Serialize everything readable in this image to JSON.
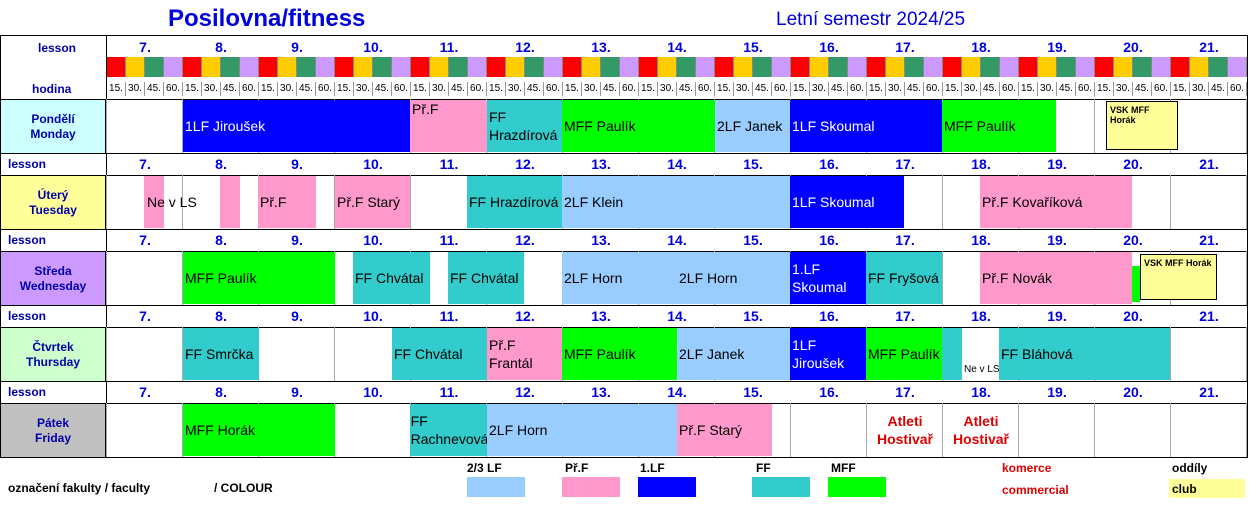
{
  "title": "Posilovna/fitness",
  "semester": "Letní semestr 2024/25",
  "labels": {
    "lesson": "lesson",
    "hodina": "hodina"
  },
  "lessons": [
    "7.",
    "8.",
    "9.",
    "10.",
    "11.",
    "12.",
    "13.",
    "14.",
    "15.",
    "16.",
    "17.",
    "18.",
    "19.",
    "20.",
    "21."
  ],
  "ticks": [
    "15.",
    "30.",
    "45.",
    "60."
  ],
  "color_strip": [
    "#ff0000",
    "#ffcc00",
    "#339966",
    "#cc99ff"
  ],
  "days": [
    {
      "cz": "Pondělí",
      "en": "Monday",
      "bg": "#ccffff"
    },
    {
      "cz": "Úterý",
      "en": "Tuesday",
      "bg": "#ffff99"
    },
    {
      "cz": "Středa",
      "en": "Wednesday",
      "bg": "#cc99ff"
    },
    {
      "cz": "Čtvrtek",
      "en": "Thursday",
      "bg": "#ccffcc"
    },
    {
      "cz": "Pátek",
      "en": "Friday",
      "bg": "#c0c0c0"
    }
  ],
  "colors": {
    "lf23": "#99ccff",
    "prf": "#ff99cc",
    "lf1": "#0000ff",
    "ff": "#33cccc",
    "mff": "#00ff00",
    "club": "#ffff99",
    "commercial": "#dd0000"
  },
  "blocks": {
    "mon": [
      "1LF Jiroušek",
      "Př.F",
      "FF Hrazdírová",
      "MFF Paulík",
      "2LF Janek",
      "1LF Skoumal",
      "MFF Paulík",
      "VSK MFF Horák"
    ],
    "tue": [
      "Ne v LS",
      "Př.F",
      "Př.F Starý",
      "FF Hrazdírová",
      "2LF Klein",
      "1LF Skoumal",
      "Př.F Kovaříková"
    ],
    "wed": [
      "MFF Paulík",
      "FF Chvátal",
      "FF Chvátal",
      "2LF  Horn",
      "2LF  Horn",
      "1.LF Skoumal",
      "FF Fryšová",
      "Př.F Novák",
      "VSK MFF Horák"
    ],
    "thu": [
      "FF Smrčka",
      "FF Chvátal",
      "Př.F Frantál",
      "MFF Paulík",
      "2LF  Janek",
      "1LF Jiroušek",
      "MFF Paulík",
      "FF Bláhová",
      "Ne v LS"
    ],
    "fri": [
      "MFF Horák",
      "FF Rachnevová",
      "2LF  Horn",
      "Př.F Starý",
      "Atleti Hostivař",
      "Atleti Hostivař"
    ]
  },
  "legend": {
    "caption": "označení fakulty / faculty",
    "colour": "/ COLOUR",
    "lf23": "2/3 LF",
    "prf": "Př.F",
    "lf1": "1.LF",
    "ff": "FF",
    "mff": "MFF",
    "komerce": "komerce",
    "commercial": "commercial",
    "oddily": "oddíly",
    "club": "club"
  }
}
